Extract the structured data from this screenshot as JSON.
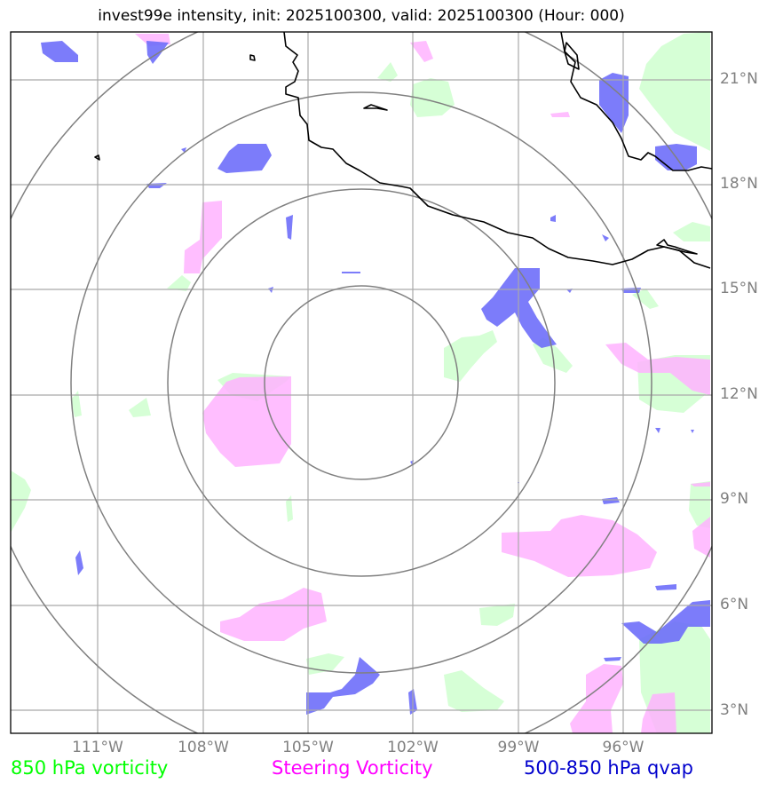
{
  "title": "invest99e intensity, init: 2025100300, valid: 2025100300 (Hour: 000)",
  "lat_labels": [
    "21°N",
    "18°N",
    "15°N",
    "12°N",
    "9°N",
    "6°N",
    "3°N"
  ],
  "lon_labels": [
    "111°W",
    "108°W",
    "105°W",
    "102°W",
    "99°W",
    "96°W"
  ],
  "legend": {
    "vort850": "850 hPa vorticity",
    "steering": "Steering Vorticity",
    "qvap": "500-850 hPa qvap"
  },
  "colors": {
    "vort850": "#ccffcc",
    "steering": "#ffb3ff",
    "qvap": "#6e6efa",
    "grid": "#a9a9a9",
    "rings": "#808080",
    "coast": "#000000"
  }
}
